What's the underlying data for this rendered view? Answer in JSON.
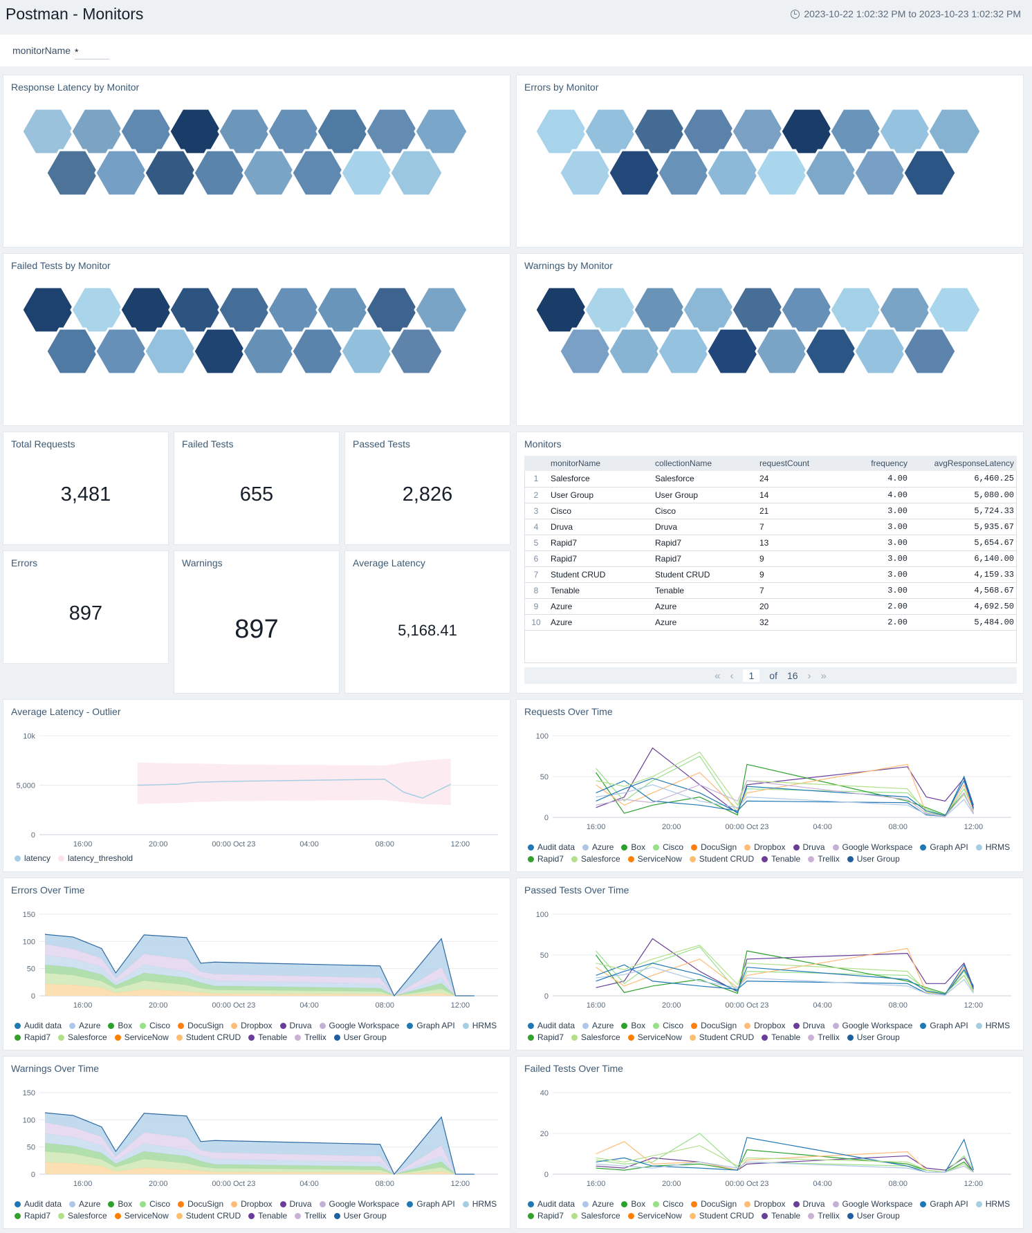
{
  "header": {
    "title": "Postman - Monitors",
    "time_range": "2023-10-22 1:02:32 PM to 2023-10-23 1:02:32 PM"
  },
  "filter": {
    "label": "monitorName",
    "value": "*"
  },
  "honeycombs": {
    "latency": {
      "title": "Response Latency by Monitor",
      "row1": [
        "#9ac2dd",
        "#7ba3c4",
        "#5f89b0",
        "#1a3c69",
        "#6d96bb",
        "#6690b7",
        "#4f7aa2",
        "#648cb3",
        "#7aa6c9"
      ],
      "row2": [
        "#4e7399",
        "#759fc4",
        "#345a83",
        "#5b84ad",
        "#7aa4c6",
        "#6089b1",
        "#a7d3ea",
        "#9cc7e0"
      ]
    },
    "errors": {
      "title": "Errors by Monitor",
      "row1": [
        "#a8d4eb",
        "#93c1dd",
        "#436b94",
        "#5b82aa",
        "#7aa1c4",
        "#1a3c69",
        "#6a94b9",
        "#95c3df",
        "#85b2d0"
      ],
      "row2": [
        "#a6d1e9",
        "#23487a",
        "#6992b8",
        "#8cb9d7",
        "#a9d6ec",
        "#7ea8c9",
        "#77a0c4",
        "#2b5584"
      ]
    },
    "failed": {
      "title": "Failed Tests by Monitor",
      "row1": [
        "#1e426f",
        "#a9d4ea",
        "#1c3f6c",
        "#2d5381",
        "#446d97",
        "#6690b7",
        "#6a95ba",
        "#3c648f",
        "#7aa4c6"
      ],
      "row2": [
        "#4f7aa3",
        "#6690b7",
        "#94c1dd",
        "#1f4472",
        "#6790b7",
        "#5b84ad",
        "#92c0dc",
        "#5f84ab"
      ]
    },
    "warnings": {
      "title": "Warnings by Monitor",
      "row1": [
        "#1a3c69",
        "#a9d4ea",
        "#6a93b8",
        "#8ab8d6",
        "#476e97",
        "#6690b7",
        "#a4d0e8",
        "#7aa4c6",
        "#a9d6ec"
      ],
      "row2": [
        "#7aa1c5",
        "#87b4d2",
        "#95c3df",
        "#21477a",
        "#7aa4c6",
        "#2b5584",
        "#95c3df",
        "#5d84ac"
      ]
    }
  },
  "stats": [
    {
      "label": "Total Requests",
      "value": "3,481"
    },
    {
      "label": "Failed Tests",
      "value": "655"
    },
    {
      "label": "Passed Tests",
      "value": "2,826"
    },
    {
      "label": "Errors",
      "value": "897"
    },
    {
      "label": "Warnings",
      "value": "897"
    },
    {
      "label": "Average Latency",
      "value": "5,168.41"
    }
  ],
  "monitors": {
    "title": "Monitors",
    "columns": [
      "monitorName",
      "collectionName",
      "requestCount",
      "frequency",
      "avgResponseLatency"
    ],
    "rows": [
      [
        "1",
        "Salesforce",
        "Salesforce",
        "24",
        "4.00",
        "6,460.25"
      ],
      [
        "2",
        "User Group",
        "User Group",
        "14",
        "4.00",
        "5,080.00"
      ],
      [
        "3",
        "Cisco",
        "Cisco",
        "21",
        "3.00",
        "5,724.33"
      ],
      [
        "4",
        "Druva",
        "Druva",
        "7",
        "3.00",
        "5,935.67"
      ],
      [
        "5",
        "Rapid7",
        "Rapid7",
        "13",
        "3.00",
        "5,654.67"
      ],
      [
        "6",
        "Rapid7",
        "Rapid7",
        "9",
        "3.00",
        "6,140.00"
      ],
      [
        "7",
        "Student CRUD",
        "Student CRUD",
        "9",
        "3.00",
        "4,159.33"
      ],
      [
        "8",
        "Tenable",
        "Tenable",
        "7",
        "3.00",
        "4,568.67"
      ],
      [
        "9",
        "Azure",
        "Azure",
        "20",
        "2.00",
        "4,692.50"
      ],
      [
        "10",
        "Azure",
        "Azure",
        "32",
        "2.00",
        "5,484.00"
      ]
    ],
    "pager": {
      "page": "1",
      "of_label": "of",
      "total": "16"
    }
  },
  "legend_series": [
    {
      "name": "Audit data",
      "color": "#1f77b4"
    },
    {
      "name": "Azure",
      "color": "#aec7e8"
    },
    {
      "name": "Box",
      "color": "#2ca02c"
    },
    {
      "name": "Cisco",
      "color": "#98df8a"
    },
    {
      "name": "DocuSign",
      "color": "#ff7f0e"
    },
    {
      "name": "Dropbox",
      "color": "#ffbb78"
    },
    {
      "name": "Druva",
      "color": "#6a3d9a"
    },
    {
      "name": "Google Workspace",
      "color": "#c5b0d5"
    },
    {
      "name": "Graph API",
      "color": "#1f78b4"
    },
    {
      "name": "HRMS",
      "color": "#a6cee3"
    },
    {
      "name": "Rapid7",
      "color": "#33a02c"
    },
    {
      "name": "Salesforce",
      "color": "#b2df8a"
    },
    {
      "name": "ServiceNow",
      "color": "#ff7f00"
    },
    {
      "name": "Student CRUD",
      "color": "#fdbf6f"
    },
    {
      "name": "Tenable",
      "color": "#6a3d9a"
    },
    {
      "name": "Trellix",
      "color": "#cab2d6"
    },
    {
      "name": "User Group",
      "color": "#1f5fa0"
    }
  ],
  "chart_data": [
    {
      "id": "latency_outlier",
      "title": "Average Latency - Outlier",
      "type": "area",
      "x_ticks": [
        "16:00",
        "20:00",
        "00:00 Oct 23",
        "04:00",
        "08:00",
        "12:00"
      ],
      "y_ticks": [
        "0",
        "5,000",
        "10k"
      ],
      "ylim": [
        0,
        10000
      ],
      "x_hours": [
        18.9,
        21.0,
        22.0,
        24.0,
        32.0,
        33.0,
        34.0,
        35.5
      ],
      "latency": [
        5000,
        5100,
        5300,
        5400,
        5600,
        4300,
        3700,
        5100
      ],
      "threshold_upper": [
        7300,
        7200,
        7200,
        7100,
        7000,
        7300,
        7500,
        7700
      ],
      "threshold_lower": [
        3100,
        3200,
        3300,
        3400,
        3500,
        3300,
        3100,
        3000
      ],
      "legend": [
        {
          "name": "latency",
          "color": "#a6cee3"
        },
        {
          "name": "latency_threshold",
          "color": "#fbe3ee"
        }
      ]
    },
    {
      "id": "requests",
      "title": "Requests Over Time",
      "type": "line",
      "x_ticks": [
        "16:00",
        "20:00",
        "00:00 Oct 23",
        "04:00",
        "08:00",
        "12:00"
      ],
      "y_ticks": [
        "0",
        "50",
        "100"
      ],
      "ylim": [
        0,
        100
      ],
      "x_hours": [
        16.0,
        17.5,
        19.0,
        21.5,
        23.5,
        24.0,
        32.5,
        33.5,
        34.5,
        35.5,
        36.0
      ],
      "series": [
        {
          "name": "Druva",
          "values": [
            12,
            25,
            85,
            40,
            5,
            40,
            62,
            25,
            20,
            48,
            12
          ]
        },
        {
          "name": "Cisco",
          "values": [
            60,
            20,
            45,
            75,
            5,
            35,
            30,
            10,
            2,
            35,
            10
          ]
        },
        {
          "name": "Box",
          "values": [
            55,
            5,
            15,
            25,
            3,
            65,
            20,
            12,
            3,
            30,
            5
          ]
        },
        {
          "name": "Dropbox",
          "values": [
            40,
            15,
            30,
            55,
            10,
            30,
            65,
            5,
            2,
            40,
            8
          ]
        },
        {
          "name": "Audit data",
          "values": [
            30,
            45,
            20,
            15,
            8,
            20,
            18,
            3,
            1,
            50,
            15
          ]
        },
        {
          "name": "Salesforce",
          "values": [
            45,
            38,
            50,
            80,
            15,
            45,
            35,
            6,
            2,
            28,
            6
          ]
        },
        {
          "name": "Azure",
          "values": [
            25,
            30,
            40,
            20,
            12,
            25,
            15,
            4,
            1,
            22,
            4
          ]
        },
        {
          "name": "Graph API",
          "values": [
            20,
            35,
            48,
            30,
            6,
            38,
            25,
            8,
            2,
            45,
            10
          ]
        },
        {
          "name": "Trellix",
          "values": [
            15,
            22,
            18,
            40,
            20,
            45,
            22,
            5,
            1,
            30,
            5
          ]
        }
      ]
    },
    {
      "id": "errors",
      "title": "Errors Over Time",
      "type": "area",
      "x_ticks": [
        "16:00",
        "20:00",
        "00:00 Oct 23",
        "04:00",
        "08:00",
        "12:00"
      ],
      "y_ticks": [
        "0",
        "50",
        "100",
        "150"
      ],
      "ylim": [
        0,
        150
      ],
      "x_hours": [
        14.0,
        15.5,
        17.0,
        17.75,
        19.25,
        21.5,
        22.25,
        23.0,
        31.75,
        32.5,
        35.0,
        35.75,
        36.75
      ],
      "layers": [
        {
          "name": "Dropbox",
          "color": "#fdd9a7",
          "values": [
            22,
            20,
            15,
            5,
            12,
            8,
            6,
            4,
            3,
            0,
            5,
            0,
            0
          ]
        },
        {
          "name": "Salesforce",
          "color": "#cfe8b4",
          "values": [
            20,
            18,
            12,
            8,
            16,
            12,
            8,
            7,
            5,
            0,
            8,
            0,
            0
          ]
        },
        {
          "name": "Box",
          "color": "#a5d9a0",
          "values": [
            15,
            14,
            12,
            6,
            14,
            13,
            10,
            7,
            6,
            0,
            10,
            0,
            0
          ]
        },
        {
          "name": "Azure",
          "color": "#c8dcef",
          "values": [
            18,
            16,
            14,
            5,
            15,
            12,
            10,
            10,
            8,
            0,
            10,
            0,
            0
          ]
        },
        {
          "name": "Google Workspace",
          "color": "#e3d5ee",
          "values": [
            20,
            18,
            16,
            8,
            20,
            22,
            10,
            12,
            11,
            0,
            20,
            0,
            0
          ]
        },
        {
          "name": "HRMS",
          "color": "#b7d4ea",
          "values": [
            18,
            22,
            18,
            10,
            35,
            40,
            16,
            22,
            22,
            0,
            52,
            0,
            0
          ]
        }
      ]
    },
    {
      "id": "passed",
      "title": "Passed Tests Over Time",
      "type": "line",
      "x_ticks": [
        "16:00",
        "20:00",
        "00:00 Oct 23",
        "04:00",
        "08:00",
        "12:00"
      ],
      "y_ticks": [
        "0",
        "50",
        "100"
      ],
      "ylim": [
        0,
        100
      ],
      "x_hours": [
        16.0,
        17.5,
        19.0,
        21.5,
        23.5,
        24.0,
        32.5,
        33.5,
        34.5,
        35.5,
        36.0
      ],
      "series": [
        {
          "name": "Druva",
          "values": [
            10,
            18,
            70,
            30,
            5,
            45,
            52,
            15,
            15,
            40,
            10
          ]
        },
        {
          "name": "Cisco",
          "values": [
            55,
            15,
            40,
            60,
            5,
            30,
            25,
            8,
            2,
            30,
            8
          ]
        },
        {
          "name": "Box",
          "values": [
            50,
            4,
            12,
            20,
            3,
            55,
            18,
            10,
            3,
            25,
            5
          ]
        },
        {
          "name": "Dropbox",
          "values": [
            35,
            12,
            25,
            45,
            10,
            25,
            58,
            4,
            2,
            35,
            6
          ]
        },
        {
          "name": "Audit data",
          "values": [
            25,
            38,
            18,
            12,
            8,
            18,
            15,
            3,
            1,
            32,
            12
          ]
        },
        {
          "name": "Salesforce",
          "values": [
            40,
            32,
            45,
            62,
            14,
            40,
            30,
            5,
            2,
            25,
            5
          ]
        },
        {
          "name": "Azure",
          "values": [
            22,
            26,
            35,
            18,
            10,
            22,
            12,
            3,
            1,
            20,
            3
          ]
        },
        {
          "name": "Graph API",
          "values": [
            18,
            30,
            40,
            26,
            6,
            35,
            20,
            6,
            2,
            38,
            8
          ]
        }
      ]
    },
    {
      "id": "warnings",
      "title": "Warnings Over Time",
      "type": "area",
      "x_ticks": [
        "16:00",
        "20:00",
        "00:00 Oct 23",
        "04:00",
        "08:00",
        "12:00"
      ],
      "y_ticks": [
        "0",
        "50",
        "100",
        "150"
      ],
      "ylim": [
        0,
        150
      ],
      "x_hours": [
        14.0,
        15.5,
        17.0,
        17.75,
        19.25,
        21.5,
        22.25,
        23.0,
        31.75,
        32.5,
        35.0,
        35.75,
        36.75
      ],
      "layers": [
        {
          "name": "Dropbox",
          "color": "#fdd9a7",
          "values": [
            22,
            20,
            15,
            5,
            12,
            8,
            6,
            4,
            3,
            0,
            5,
            0,
            0
          ]
        },
        {
          "name": "Salesforce",
          "color": "#cfe8b4",
          "values": [
            20,
            18,
            12,
            8,
            16,
            12,
            8,
            7,
            5,
            0,
            8,
            0,
            0
          ]
        },
        {
          "name": "Box",
          "color": "#a5d9a0",
          "values": [
            15,
            14,
            12,
            6,
            14,
            13,
            10,
            7,
            6,
            0,
            10,
            0,
            0
          ]
        },
        {
          "name": "Azure",
          "color": "#c8dcef",
          "values": [
            18,
            16,
            14,
            5,
            15,
            12,
            10,
            10,
            8,
            0,
            10,
            0,
            0
          ]
        },
        {
          "name": "Google Workspace",
          "color": "#e3d5ee",
          "values": [
            20,
            18,
            16,
            8,
            20,
            22,
            10,
            12,
            11,
            0,
            20,
            0,
            0
          ]
        },
        {
          "name": "HRMS",
          "color": "#b7d4ea",
          "values": [
            18,
            22,
            18,
            10,
            35,
            40,
            16,
            22,
            22,
            0,
            52,
            0,
            0
          ]
        }
      ]
    },
    {
      "id": "failed",
      "title": "Failed Tests Over Time",
      "type": "line",
      "x_ticks": [
        "16:00",
        "20:00",
        "00:00 Oct 23",
        "04:00",
        "08:00",
        "12:00"
      ],
      "y_ticks": [
        "0",
        "20",
        "40"
      ],
      "ylim": [
        0,
        40
      ],
      "x_hours": [
        16.0,
        17.5,
        19.0,
        21.5,
        23.5,
        24.0,
        32.5,
        33.5,
        34.5,
        35.5,
        36.0
      ],
      "series": [
        {
          "name": "Druva",
          "values": [
            4,
            3,
            8,
            6,
            2,
            5,
            9,
            3,
            2,
            8,
            1
          ]
        },
        {
          "name": "Cisco",
          "values": [
            7,
            5,
            6,
            20,
            3,
            6,
            4,
            2,
            1,
            9,
            2
          ]
        },
        {
          "name": "Box",
          "values": [
            3,
            2,
            4,
            5,
            2,
            12,
            5,
            2,
            1,
            6,
            1
          ]
        },
        {
          "name": "Dropbox",
          "values": [
            10,
            16,
            5,
            6,
            2,
            7,
            11,
            2,
            1,
            4,
            1
          ]
        },
        {
          "name": "Audit data",
          "values": [
            6,
            8,
            4,
            3,
            2,
            18,
            4,
            1,
            1,
            17,
            2
          ]
        },
        {
          "name": "Salesforce",
          "values": [
            8,
            6,
            9,
            14,
            4,
            8,
            6,
            2,
            1,
            5,
            1
          ]
        },
        {
          "name": "Azure",
          "values": [
            5,
            4,
            3,
            6,
            3,
            6,
            3,
            1,
            1,
            4,
            1
          ]
        }
      ]
    }
  ]
}
